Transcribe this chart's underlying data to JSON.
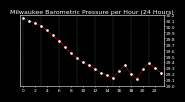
{
  "title": "Milwaukee Barometric Pressure per Hour (24 Hours)",
  "hours": [
    0,
    1,
    2,
    3,
    4,
    5,
    6,
    7,
    8,
    9,
    10,
    11,
    12,
    13,
    14,
    15,
    16,
    17,
    18,
    19,
    20,
    21,
    22,
    23
  ],
  "pressure": [
    30.14,
    30.1,
    30.06,
    30.01,
    29.94,
    29.85,
    29.76,
    29.65,
    29.55,
    29.47,
    29.4,
    29.35,
    29.28,
    29.22,
    29.18,
    29.14,
    29.25,
    29.35,
    29.2,
    29.12,
    29.28,
    29.38,
    29.3,
    29.22
  ],
  "line_color": "#ff0000",
  "marker_color": "#000000",
  "bg_color": "#000000",
  "plot_bg_color": "#000000",
  "grid_color": "#555555",
  "text_color": "#ffffff",
  "ylim_min": 29.0,
  "ylim_max": 30.2,
  "ytick_step": 0.1,
  "title_fontsize": 4.5,
  "tick_fontsize": 3.2,
  "marker_size": 1.8,
  "line_width": 0.5
}
